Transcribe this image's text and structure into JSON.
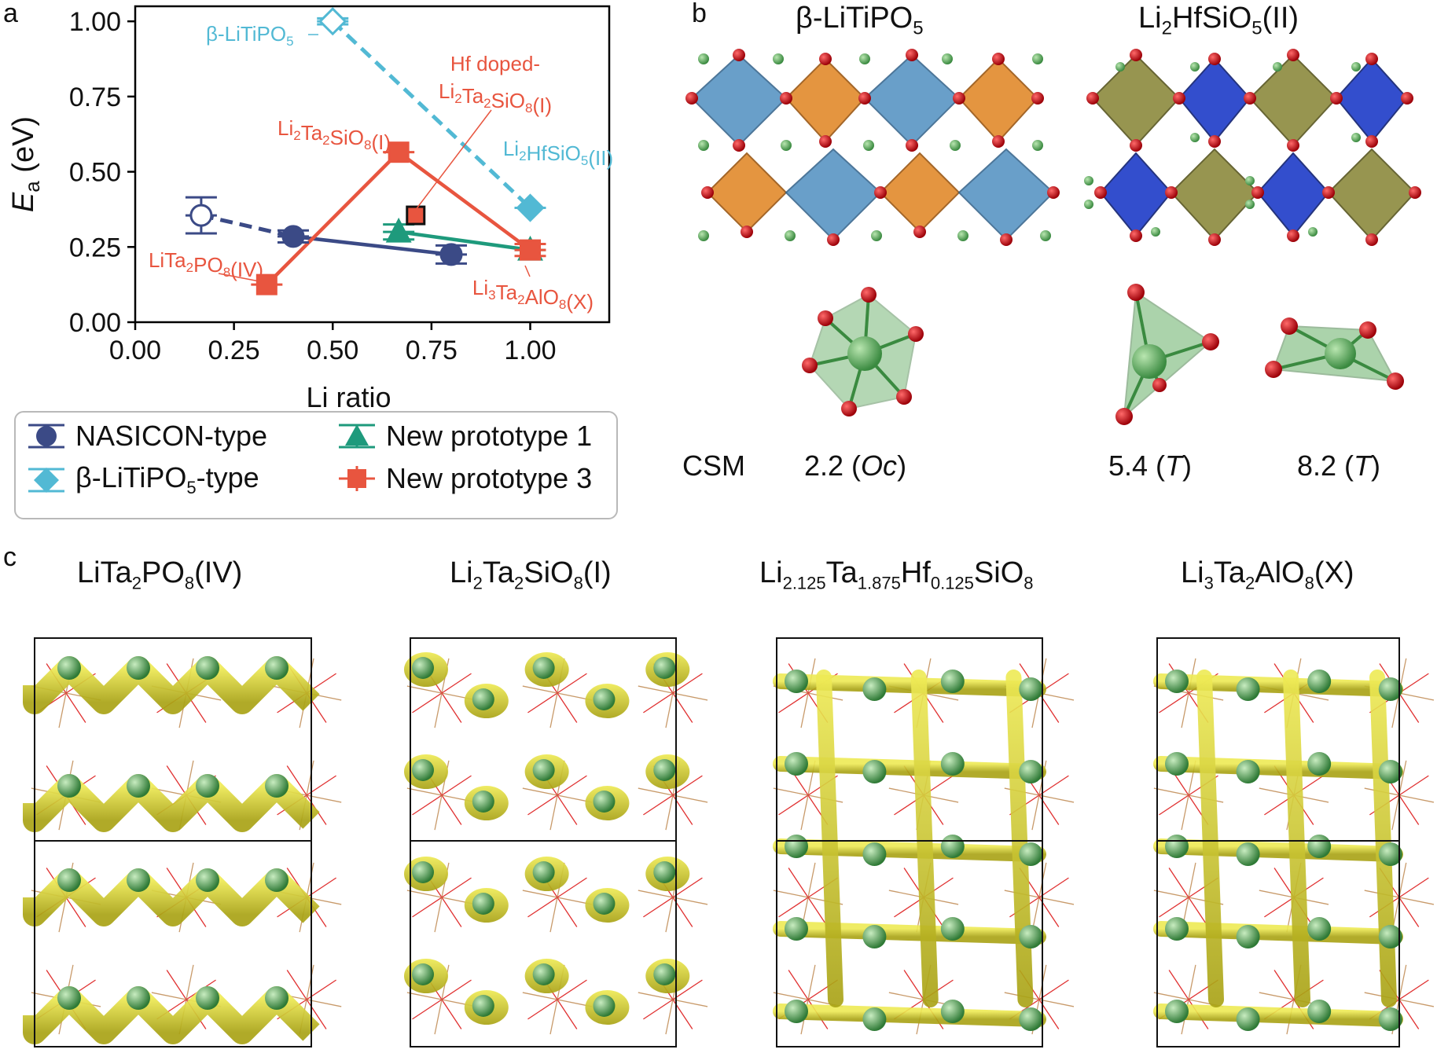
{
  "panels": {
    "a": "a",
    "b": "b",
    "c": "c"
  },
  "colors": {
    "nasicon": "#3b4a86",
    "beta": "#52b9d4",
    "proto1": "#1e9a7c",
    "proto3": "#e8553f",
    "li_atom": "#3f9a4c",
    "o_atom": "#c8111a",
    "isosurface": "#d9d11c"
  },
  "chart_data": {
    "type": "scatter",
    "xlabel": "Li ratio",
    "ylabel_main": "E",
    "ylabel_sub": "a",
    "ylabel_unit": " (eV)",
    "xlim": [
      0.0,
      1.2
    ],
    "ylim": [
      0.0,
      1.05
    ],
    "xticks": [
      "0.00",
      "0.25",
      "0.50",
      "0.75",
      "1.00"
    ],
    "xtick_values": [
      0.0,
      0.25,
      0.5,
      0.75,
      1.0
    ],
    "yticks": [
      "0.00",
      "0.25",
      "0.50",
      "0.75",
      "1.00"
    ],
    "ytick_values": [
      0.0,
      0.25,
      0.5,
      0.75,
      1.0
    ],
    "series": [
      {
        "name": "NASICON-type",
        "marker": "circle",
        "color": "#3b4a86",
        "points": [
          {
            "x": 0.167,
            "y": 0.355,
            "err": 0.06,
            "open": true
          },
          {
            "x": 0.4,
            "y": 0.285,
            "err": 0.02,
            "open": false
          },
          {
            "x": 0.8,
            "y": 0.225,
            "err": 0.03,
            "open": false
          }
        ],
        "dashed_segment": [
          [
            0.167,
            0.355
          ],
          [
            0.4,
            0.285
          ]
        ],
        "solid_segment": [
          [
            0.4,
            0.285
          ],
          [
            0.8,
            0.225
          ]
        ]
      },
      {
        "name": "β-LiTiPO5-type",
        "marker": "diamond",
        "color": "#52b9d4",
        "points": [
          {
            "x": 0.5,
            "y": 1.0,
            "err": 0.01,
            "open": true
          },
          {
            "x": 1.0,
            "y": 0.38,
            "err": 0.0,
            "open": false
          }
        ],
        "dashed_segment": [
          [
            0.5,
            1.0
          ],
          [
            1.0,
            0.38
          ]
        ]
      },
      {
        "name": "New prototype 1",
        "marker": "triangle",
        "color": "#1e9a7c",
        "points": [
          {
            "x": 0.667,
            "y": 0.3,
            "err": 0.025,
            "open": false
          },
          {
            "x": 1.0,
            "y": 0.24,
            "err": 0.0,
            "open": false
          }
        ],
        "solid_segment": [
          [
            0.667,
            0.3
          ],
          [
            1.0,
            0.24
          ]
        ]
      },
      {
        "name": "New prototype 3",
        "marker": "square",
        "color": "#e8553f",
        "points": [
          {
            "x": 0.333,
            "y": 0.125,
            "err": 0.0,
            "open": false
          },
          {
            "x": 0.667,
            "y": 0.565,
            "err": 0.0,
            "open": false
          },
          {
            "x": 1.0,
            "y": 0.24,
            "err": 0.02,
            "open": false
          }
        ],
        "solid_path": [
          [
            0.333,
            0.125
          ],
          [
            0.667,
            0.565
          ],
          [
            1.0,
            0.24
          ]
        ],
        "special_point": {
          "x": 0.71,
          "y": 0.355,
          "label": "Hf doped"
        }
      }
    ],
    "annotations": [
      {
        "main": "β-LiTiPO",
        "sub": "5",
        "tail": "",
        "color": "#52b9d4"
      },
      {
        "main": "Hf doped-",
        "color": "#e8553f"
      },
      {
        "main": "Li",
        "sub": "2",
        "main2": "Ta",
        "sub2": "2",
        "main3": "SiO",
        "sub3": "8",
        "tail": "(I)",
        "color": "#e8553f"
      },
      {
        "main": "Li",
        "sub": "2",
        "main2": "Ta",
        "sub2": "2",
        "main3": "SiO",
        "sub3": "8",
        "tail": "(I)",
        "color": "#e8553f"
      },
      {
        "main": "Li",
        "sub": "2",
        "main2": "HfSiO",
        "sub2": "5",
        "tail": "(II)",
        "color": "#52b9d4"
      },
      {
        "main": "LiTa",
        "sub": "2",
        "main2": "PO",
        "sub2": "8",
        "tail": "(IV)",
        "color": "#e8553f"
      },
      {
        "main": "Li",
        "sub": "3",
        "main2": "Ta",
        "sub2": "2",
        "main3": "AlO",
        "sub3": "8",
        "tail": "(X)",
        "color": "#e8553f"
      }
    ],
    "legend": [
      {
        "label": "NASICON-type",
        "marker": "circle",
        "color": "#3b4a86"
      },
      {
        "label_main": "β-LiTiPO",
        "label_sub": "5",
        "label_tail": "-type",
        "marker": "diamond",
        "color": "#52b9d4"
      },
      {
        "label": "New prototype 1",
        "marker": "triangle",
        "color": "#1e9a7c"
      },
      {
        "label": "New prototype 3",
        "marker": "square",
        "color": "#e8553f"
      }
    ]
  },
  "panel_b": {
    "left_title": {
      "main": "β-LiTiPO",
      "sub": "5"
    },
    "right_title": {
      "main": "Li",
      "sub": "2",
      "tail": "HfSiO",
      "sub2": "5",
      "tail2": "(II)"
    },
    "csm_label": "CSM",
    "csm_values": [
      {
        "value": "2.2 (",
        "italic": "Oc",
        "close": ")"
      },
      {
        "value": "5.4 (",
        "italic": "T",
        "close": ")"
      },
      {
        "value": "8.2 (",
        "italic": "T",
        "close": ")"
      }
    ]
  },
  "panel_c": {
    "titles": [
      {
        "parts": [
          [
            "LiTa",
            ""
          ],
          [
            "2",
            "sub"
          ],
          [
            "PO",
            ""
          ],
          [
            "8",
            "sub"
          ],
          [
            "(IV)",
            ""
          ]
        ]
      },
      {
        "parts": [
          [
            "Li",
            ""
          ],
          [
            "2",
            "sub"
          ],
          [
            "Ta",
            ""
          ],
          [
            "2",
            "sub"
          ],
          [
            "SiO",
            ""
          ],
          [
            "8",
            "sub"
          ],
          [
            "(I)",
            ""
          ]
        ]
      },
      {
        "parts": [
          [
            "Li",
            ""
          ],
          [
            "2.125",
            "sub"
          ],
          [
            "Ta",
            ""
          ],
          [
            "1.875",
            "sub"
          ],
          [
            "Hf",
            ""
          ],
          [
            "0.125",
            "sub"
          ],
          [
            "SiO",
            ""
          ],
          [
            "8",
            "sub"
          ]
        ]
      },
      {
        "parts": [
          [
            "Li",
            ""
          ],
          [
            "3",
            "sub"
          ],
          [
            "Ta",
            ""
          ],
          [
            "2",
            "sub"
          ],
          [
            "AlO",
            ""
          ],
          [
            "8",
            "sub"
          ],
          [
            "(X)",
            ""
          ]
        ]
      }
    ]
  }
}
